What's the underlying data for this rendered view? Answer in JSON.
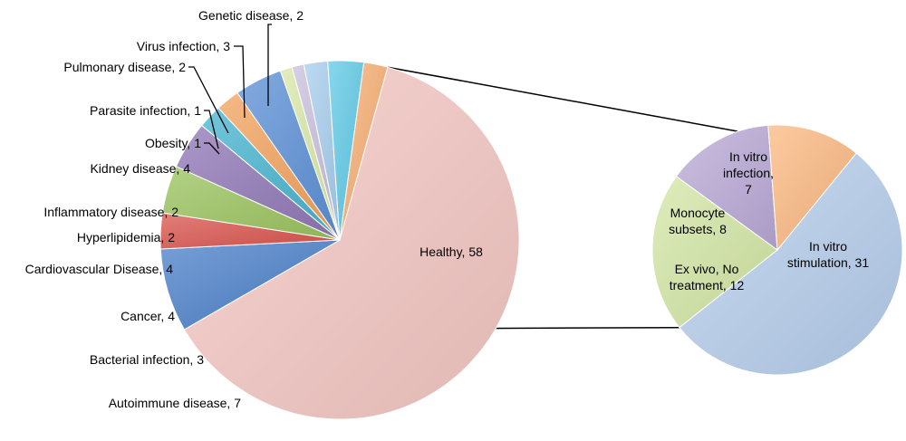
{
  "chart_data": [
    {
      "type": "pie",
      "categories": [
        "Healthy",
        "Autoimmune disease",
        "Bacterial infection",
        "Cancer",
        "Cardiovascular Disease",
        "Hyperlipidemia",
        "Inflammatory disease",
        "Kidney disease",
        "Obesity",
        "Parasite infection",
        "Pulmonary disease",
        "Virus infection",
        "Genetic disease"
      ],
      "values": [
        58,
        7,
        3,
        4,
        4,
        2,
        2,
        4,
        1,
        1,
        2,
        3,
        2
      ],
      "labels": [
        "Healthy, 58",
        "Autoimmune disease, 7",
        "Bacterial infection, 3",
        "Cancer, 4",
        "Cardiovascular Disease, 4",
        "Hyperlipidemia, 2",
        "Inflammatory disease, 2",
        "Kidney disease, 4",
        "Obesity, 1",
        "Parasite infection, 1",
        "Pulmonary disease, 2",
        "Virus infection, 3",
        "Genetic disease, 2"
      ],
      "colors": [
        "#f4c7c3",
        "#4a7fc8",
        "#d9534c",
        "#9ac35e",
        "#8f76b5",
        "#45b3cf",
        "#f2a15c",
        "#5b8fd6",
        "#d8e7a6",
        "#c8bfdc",
        "#a7cdee",
        "#5fc9e6",
        "#f6ad70"
      ]
    },
    {
      "type": "pie",
      "categories": [
        "In vitro stimulation",
        "Ex vivo, No treatment",
        "Monocyte subsets",
        "In vitro infection"
      ],
      "values": [
        31,
        12,
        8,
        7
      ],
      "labels": [
        [
          "In vitro",
          "stimulation, 31"
        ],
        [
          "Ex vivo, No",
          "treatment, 12"
        ],
        [
          "Monocyte",
          "subsets, 8"
        ],
        [
          "In vitro",
          "infection,",
          "7"
        ]
      ],
      "colors": [
        "#b6cdec",
        "#d3e6a4",
        "#b9a9d6",
        "#fbb880"
      ]
    }
  ]
}
